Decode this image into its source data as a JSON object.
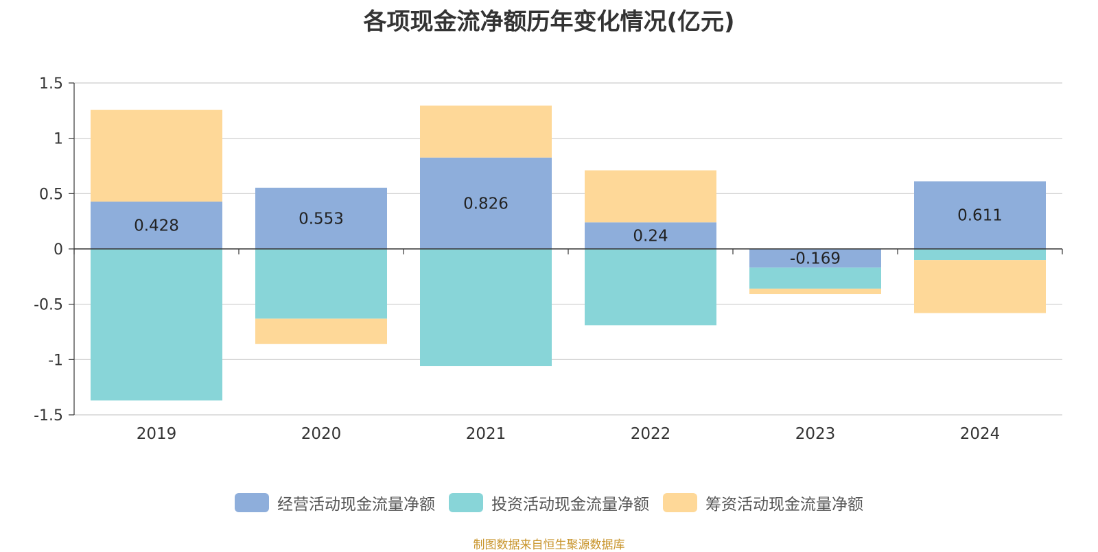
{
  "chart_data": {
    "type": "bar",
    "stacked": true,
    "title": "各项现金流净额历年变化情况(亿元)",
    "categories": [
      "2019",
      "2020",
      "2021",
      "2022",
      "2023",
      "2024"
    ],
    "ylim": [
      -1.5,
      1.5
    ],
    "yticks": [
      "1.5",
      "1",
      "0.5",
      "0",
      "-0.5",
      "-1",
      "-1.5"
    ],
    "ytick_values": [
      1.5,
      1,
      0.5,
      0,
      -0.5,
      -1,
      -1.5
    ],
    "grid": true,
    "legend_position": "bottom",
    "series": [
      {
        "name": "经营活动现金流量净额",
        "color": "#8eaedb",
        "values": [
          0.428,
          0.553,
          0.826,
          0.24,
          -0.169,
          0.611
        ],
        "labels": [
          "0.428",
          "0.553",
          "0.826",
          "0.24",
          "-0.169",
          "0.611"
        ]
      },
      {
        "name": "投资活动现金流量净额",
        "color": "#88d5d8",
        "values": [
          -1.37,
          -0.63,
          -1.06,
          -0.69,
          -0.19,
          -0.1
        ]
      },
      {
        "name": "筹资活动现金流量净额",
        "color": "#fed898",
        "values": [
          0.83,
          -0.23,
          0.47,
          0.47,
          -0.05,
          -0.48
        ]
      }
    ]
  },
  "source": "制图数据来自恒生聚源数据库"
}
